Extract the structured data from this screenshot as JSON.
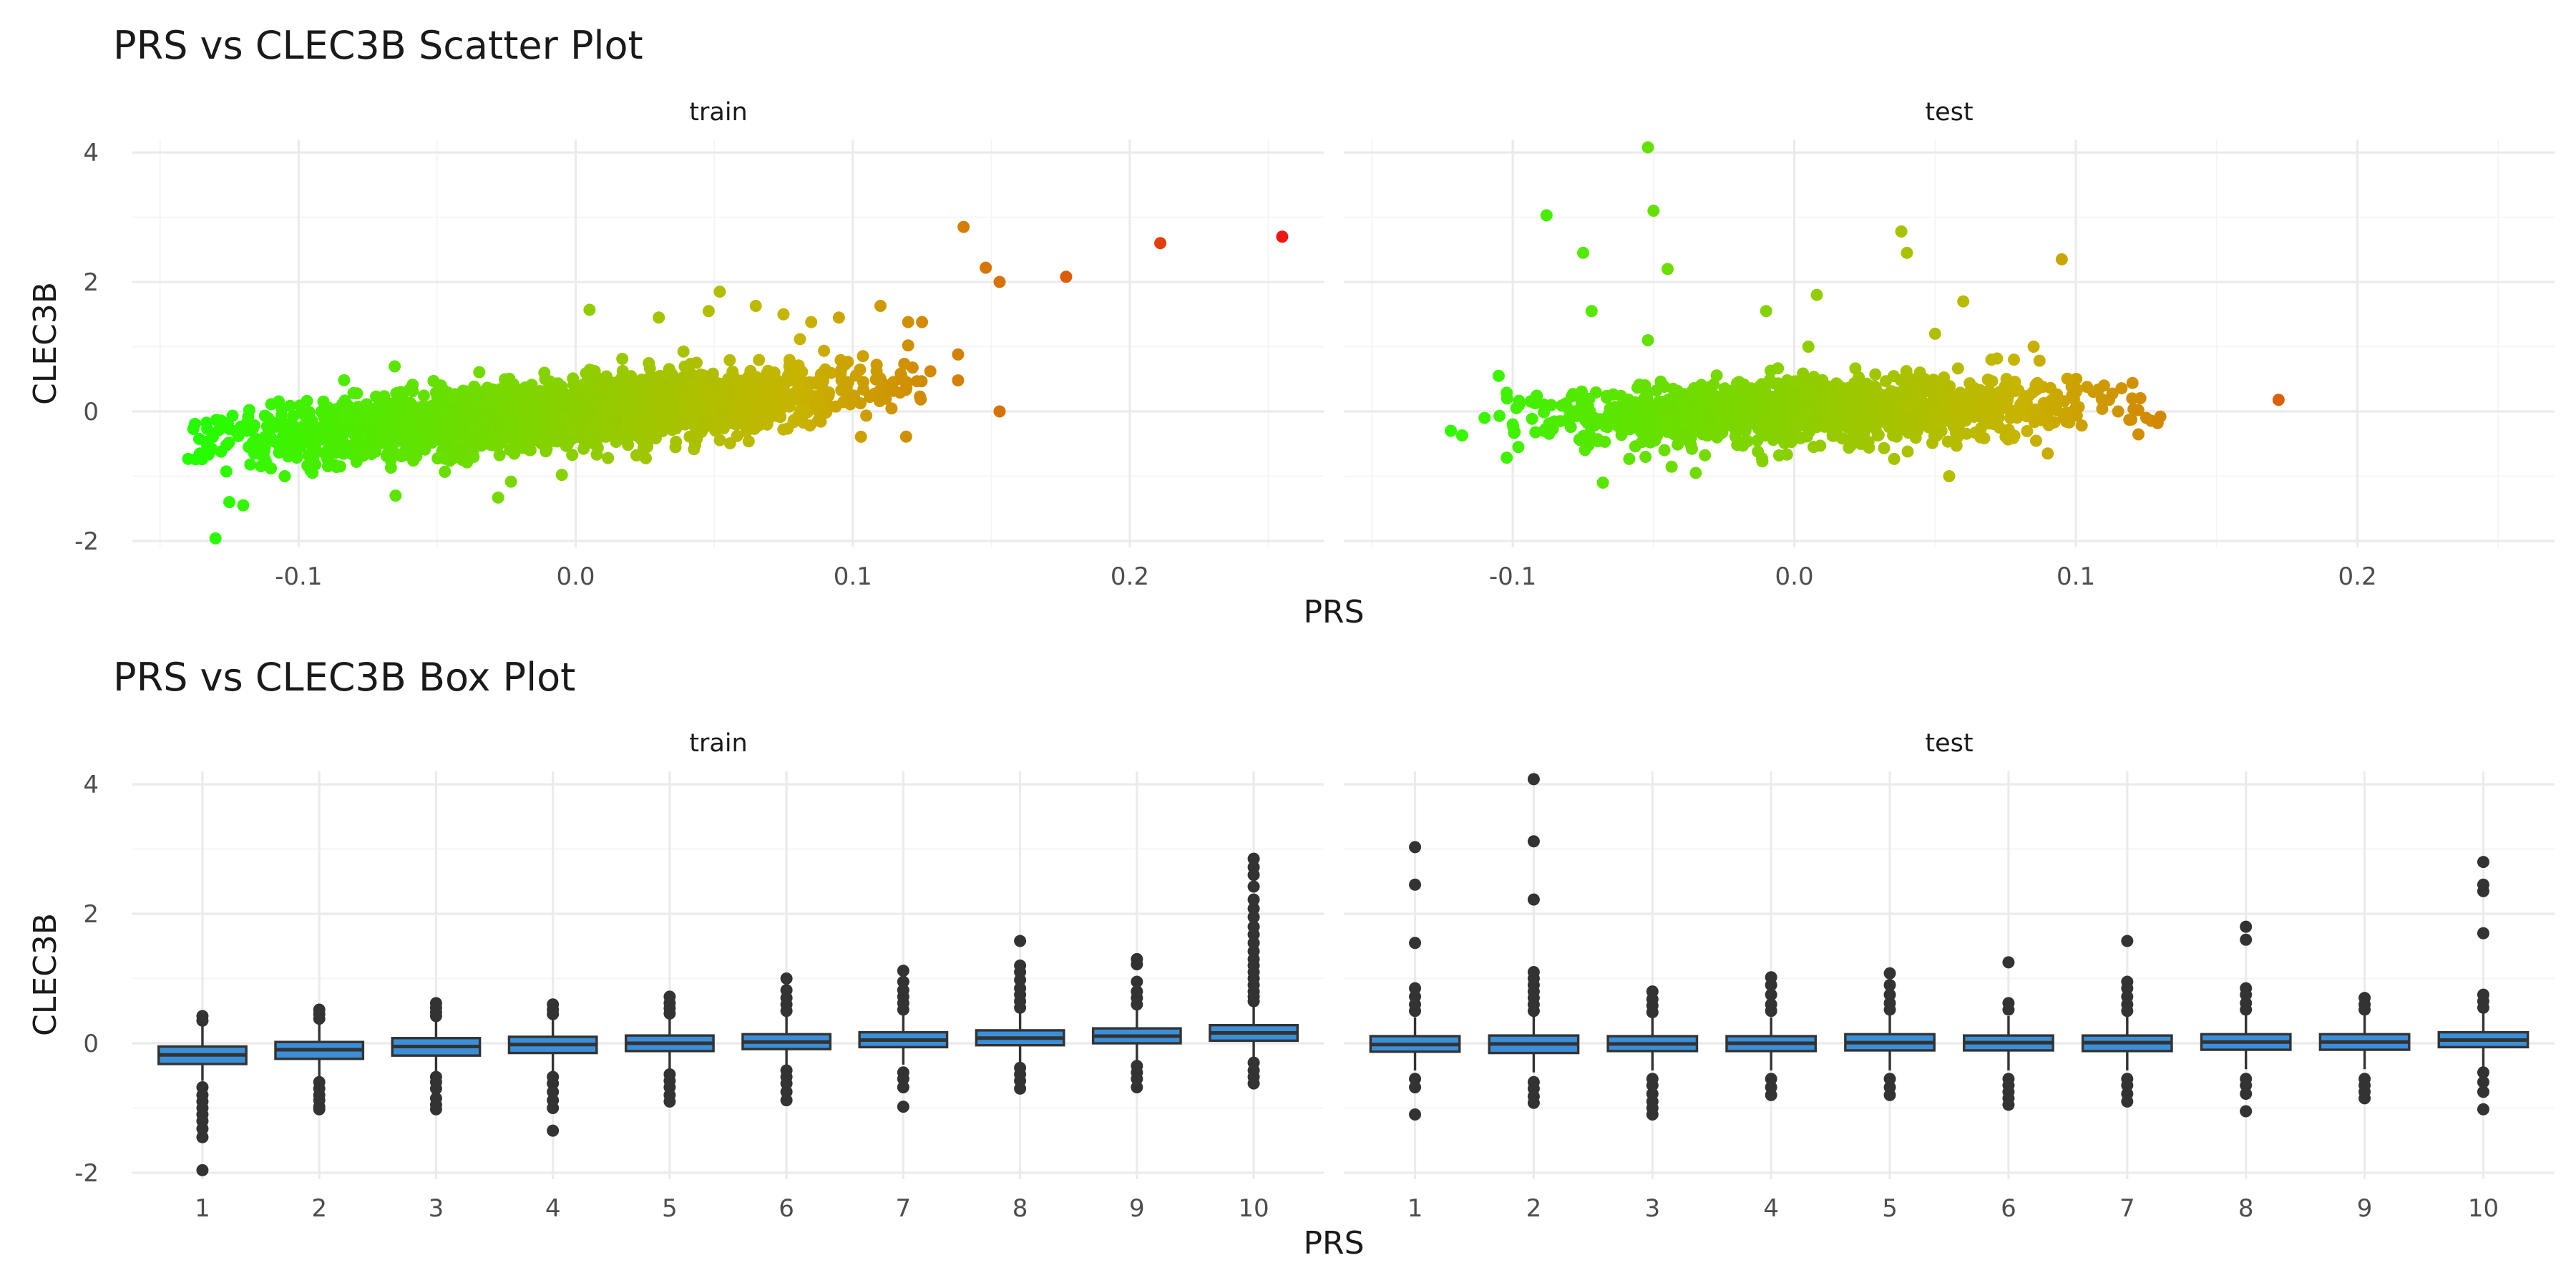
{
  "figure": {
    "scatter_title": "PRS vs CLEC3B Scatter Plot",
    "box_title": "PRS vs CLEC3B Box Plot"
  },
  "chart_data": [
    {
      "type": "scatter",
      "title": "PRS vs CLEC3B Scatter Plot",
      "xlabel": "PRS",
      "ylabel": "CLEC3B",
      "xlim": [
        -0.16,
        0.27
      ],
      "ylim": [
        -2.1,
        4.2
      ],
      "x_ticks": [
        -0.1,
        0.0,
        0.1,
        0.2
      ],
      "x_tick_labels": [
        "-0.1",
        "0.0",
        "0.1",
        "0.2"
      ],
      "y_ticks": [
        -2,
        0,
        2,
        4
      ],
      "y_tick_labels": [
        "-2",
        "0",
        "2",
        "4"
      ],
      "grid": true,
      "legend": "none",
      "color_gradient": {
        "low": "#22ff00",
        "mid": "#c8b400",
        "high": "#ee1111",
        "range": [
          -0.14,
          0.26
        ]
      },
      "facets": [
        {
          "name": "train",
          "bulk": {
            "x_mean": -0.005,
            "x_sd": 0.052,
            "x_min": -0.14,
            "x_max": 0.125,
            "slope": 3.2,
            "noise_sd": 0.25,
            "n": 2600
          },
          "points": [
            [
              -0.138,
              -0.27
            ],
            [
              -0.133,
              -0.27
            ],
            [
              -0.136,
              -0.73
            ],
            [
              -0.13,
              -1.96
            ],
            [
              -0.128,
              -0.62
            ],
            [
              -0.125,
              -1.4
            ],
            [
              -0.12,
              -1.45
            ],
            [
              -0.118,
              -0.55
            ],
            [
              -0.11,
              -0.88
            ],
            [
              -0.105,
              -1.0
            ],
            [
              -0.095,
              -0.95
            ],
            [
              -0.085,
              -0.85
            ],
            [
              -0.065,
              -1.3
            ],
            [
              -0.028,
              -1.33
            ],
            [
              -0.005,
              -0.98
            ],
            [
              0.005,
              1.57
            ],
            [
              0.03,
              1.45
            ],
            [
              0.048,
              1.55
            ],
            [
              0.052,
              1.85
            ],
            [
              0.065,
              1.63
            ],
            [
              0.075,
              1.5
            ],
            [
              0.085,
              1.38
            ],
            [
              0.095,
              1.45
            ],
            [
              0.11,
              1.63
            ],
            [
              0.12,
              1.38
            ],
            [
              0.125,
              1.38
            ],
            [
              0.12,
              1.02
            ],
            [
              0.128,
              0.62
            ],
            [
              0.138,
              0.88
            ],
            [
              0.138,
              0.48
            ],
            [
              0.14,
              2.85
            ],
            [
              0.148,
              2.22
            ],
            [
              0.153,
              2.0
            ],
            [
              0.153,
              0.0
            ],
            [
              0.177,
              2.08
            ],
            [
              0.211,
              2.6
            ],
            [
              0.255,
              2.7
            ]
          ]
        },
        {
          "name": "test",
          "bulk": {
            "x_mean": 0.005,
            "x_sd": 0.045,
            "x_min": -0.105,
            "x_max": 0.13,
            "slope": 1.2,
            "noise_sd": 0.24,
            "n": 1300
          },
          "points": [
            [
              -0.122,
              -0.3
            ],
            [
              -0.118,
              -0.37
            ],
            [
              -0.11,
              -0.1
            ],
            [
              -0.105,
              0.55
            ],
            [
              -0.1,
              -0.2
            ],
            [
              -0.102,
              0.2
            ],
            [
              -0.098,
              -0.55
            ],
            [
              -0.088,
              3.03
            ],
            [
              -0.075,
              2.45
            ],
            [
              -0.072,
              1.55
            ],
            [
              -0.068,
              -1.1
            ],
            [
              -0.052,
              4.08
            ],
            [
              -0.05,
              3.1
            ],
            [
              -0.045,
              2.2
            ],
            [
              -0.052,
              1.1
            ],
            [
              -0.035,
              -0.95
            ],
            [
              -0.01,
              1.55
            ],
            [
              0.005,
              1.0
            ],
            [
              0.008,
              1.8
            ],
            [
              0.038,
              2.78
            ],
            [
              0.04,
              2.45
            ],
            [
              0.05,
              1.2
            ],
            [
              0.055,
              -1.0
            ],
            [
              0.06,
              1.7
            ],
            [
              0.07,
              0.8
            ],
            [
              0.078,
              0.8
            ],
            [
              0.085,
              1.0
            ],
            [
              0.09,
              -0.65
            ],
            [
              0.095,
              2.35
            ],
            [
              0.1,
              0.3
            ],
            [
              0.11,
              0.4
            ],
            [
              0.115,
              0.0
            ],
            [
              0.12,
              0.2
            ],
            [
              0.125,
              -0.1
            ],
            [
              0.13,
              -0.08
            ],
            [
              0.172,
              0.18
            ]
          ]
        }
      ]
    },
    {
      "type": "box",
      "title": "PRS vs CLEC3B Box Plot",
      "xlabel": "PRS",
      "ylabel": "CLEC3B",
      "categories": [
        "1",
        "2",
        "3",
        "4",
        "5",
        "6",
        "7",
        "8",
        "9",
        "10"
      ],
      "ylim": [
        -2.1,
        4.2
      ],
      "y_ticks": [
        -2,
        0,
        2,
        4
      ],
      "y_tick_labels": [
        "-2",
        "0",
        "2",
        "4"
      ],
      "box_fill": "#3b8fd9",
      "grid": true,
      "facets": [
        {
          "name": "train",
          "boxes": [
            {
              "q1": -0.32,
              "median": -0.18,
              "q3": -0.05,
              "whisker_low": -0.58,
              "whisker_high": 0.3,
              "outliers": [
                0.35,
                0.42,
                -0.68,
                -0.8,
                -0.9,
                -1.0,
                -1.1,
                -1.2,
                -1.32,
                -1.45,
                -1.96
              ]
            },
            {
              "q1": -0.24,
              "median": -0.1,
              "q3": 0.02,
              "whisker_low": -0.55,
              "whisker_high": 0.33,
              "outliers": [
                0.38,
                0.45,
                0.52,
                -0.6,
                -0.7,
                -0.8,
                -0.88,
                -0.98,
                -1.02
              ]
            },
            {
              "q1": -0.19,
              "median": -0.05,
              "q3": 0.08,
              "whisker_low": -0.48,
              "whisker_high": 0.36,
              "outliers": [
                0.42,
                0.48,
                0.55,
                0.62,
                -0.52,
                -0.6,
                -0.7,
                -0.85,
                -0.95,
                -1.02
              ]
            },
            {
              "q1": -0.15,
              "median": -0.02,
              "q3": 0.1,
              "whisker_low": -0.44,
              "whisker_high": 0.38,
              "outliers": [
                0.45,
                0.52,
                0.6,
                -0.52,
                -0.62,
                -0.75,
                -0.88,
                -1.0,
                -1.35
              ]
            },
            {
              "q1": -0.12,
              "median": 0.0,
              "q3": 0.12,
              "whisker_low": -0.4,
              "whisker_high": 0.4,
              "outliers": [
                0.46,
                0.54,
                0.62,
                0.72,
                -0.48,
                -0.58,
                -0.68,
                -0.8,
                -0.9
              ]
            },
            {
              "q1": -0.09,
              "median": 0.02,
              "q3": 0.14,
              "whisker_low": -0.36,
              "whisker_high": 0.42,
              "outliers": [
                0.5,
                0.6,
                0.7,
                0.82,
                1.0,
                -0.42,
                -0.52,
                -0.62,
                -0.75,
                -0.88
              ]
            },
            {
              "q1": -0.06,
              "median": 0.05,
              "q3": 0.17,
              "whisker_low": -0.33,
              "whisker_high": 0.45,
              "outliers": [
                0.52,
                0.62,
                0.72,
                0.82,
                0.95,
                1.12,
                -0.45,
                -0.55,
                -0.68,
                -0.98
              ]
            },
            {
              "q1": -0.03,
              "median": 0.08,
              "q3": 0.2,
              "whisker_low": -0.3,
              "whisker_high": 0.48,
              "outliers": [
                0.55,
                0.65,
                0.75,
                0.85,
                0.98,
                1.1,
                1.2,
                1.58,
                -0.38,
                -0.48,
                -0.58,
                -0.7
              ]
            },
            {
              "q1": 0.0,
              "median": 0.11,
              "q3": 0.23,
              "whisker_low": -0.27,
              "whisker_high": 0.52,
              "outliers": [
                0.6,
                0.7,
                0.8,
                0.95,
                1.22,
                1.3,
                -0.35,
                -0.45,
                -0.55,
                -0.68
              ]
            },
            {
              "q1": 0.04,
              "median": 0.16,
              "q3": 0.28,
              "whisker_low": -0.22,
              "whisker_high": 0.6,
              "outliers": [
                0.65,
                0.72,
                0.8,
                0.9,
                1.0,
                1.1,
                1.2,
                1.3,
                1.42,
                1.55,
                1.68,
                1.8,
                1.95,
                2.08,
                2.22,
                2.42,
                2.6,
                2.72,
                2.85,
                -0.3,
                -0.42,
                -0.52,
                -0.62
              ]
            }
          ]
        },
        {
          "name": "test",
          "boxes": [
            {
              "q1": -0.13,
              "median": -0.02,
              "q3": 0.11,
              "whisker_low": -0.42,
              "whisker_high": 0.4,
              "outliers": [
                0.5,
                0.6,
                0.72,
                0.85,
                1.55,
                2.45,
                3.03,
                -0.55,
                -0.68,
                -1.1
              ]
            },
            {
              "q1": -0.15,
              "median": -0.01,
              "q3": 0.12,
              "whisker_low": -0.45,
              "whisker_high": 0.42,
              "outliers": [
                0.5,
                0.6,
                0.7,
                0.8,
                0.9,
                1.0,
                1.1,
                2.22,
                3.12,
                4.08,
                -0.6,
                -0.7,
                -0.82,
                -0.92
              ]
            },
            {
              "q1": -0.12,
              "median": -0.01,
              "q3": 0.11,
              "whisker_low": -0.42,
              "whisker_high": 0.4,
              "outliers": [
                0.48,
                0.58,
                0.68,
                0.8,
                -0.55,
                -0.65,
                -0.78,
                -0.9,
                -1.0,
                -1.1
              ]
            },
            {
              "q1": -0.12,
              "median": 0.0,
              "q3": 0.11,
              "whisker_low": -0.42,
              "whisker_high": 0.4,
              "outliers": [
                0.5,
                0.6,
                0.75,
                0.9,
                1.02,
                -0.55,
                -0.68,
                -0.8
              ]
            },
            {
              "q1": -0.11,
              "median": 0.01,
              "q3": 0.14,
              "whisker_low": -0.42,
              "whisker_high": 0.44,
              "outliers": [
                0.52,
                0.62,
                0.75,
                0.9,
                1.08,
                -0.55,
                -0.68,
                -0.8
              ]
            },
            {
              "q1": -0.11,
              "median": 0.01,
              "q3": 0.12,
              "whisker_low": -0.42,
              "whisker_high": 0.42,
              "outliers": [
                0.52,
                0.62,
                1.25,
                -0.55,
                -0.65,
                -0.75,
                -0.85,
                -0.95
              ]
            },
            {
              "q1": -0.12,
              "median": 0.01,
              "q3": 0.12,
              "whisker_low": -0.42,
              "whisker_high": 0.42,
              "outliers": [
                0.5,
                0.6,
                0.72,
                0.85,
                0.95,
                1.58,
                -0.55,
                -0.65,
                -0.78,
                -0.9
              ]
            },
            {
              "q1": -0.1,
              "median": 0.02,
              "q3": 0.14,
              "whisker_low": -0.4,
              "whisker_high": 0.44,
              "outliers": [
                0.52,
                0.62,
                0.75,
                0.85,
                1.6,
                1.8,
                -0.55,
                -0.65,
                -0.78,
                -1.05
              ]
            },
            {
              "q1": -0.1,
              "median": 0.02,
              "q3": 0.14,
              "whisker_low": -0.4,
              "whisker_high": 0.44,
              "outliers": [
                0.52,
                0.6,
                0.7,
                -0.55,
                -0.65,
                -0.75,
                -0.85
              ]
            },
            {
              "q1": -0.06,
              "median": 0.05,
              "q3": 0.17,
              "whisker_low": -0.36,
              "whisker_high": 0.46,
              "outliers": [
                0.55,
                0.65,
                0.75,
                1.7,
                2.35,
                2.45,
                2.8,
                -0.45,
                -0.6,
                -0.75,
                -1.02
              ]
            }
          ]
        }
      ]
    }
  ]
}
